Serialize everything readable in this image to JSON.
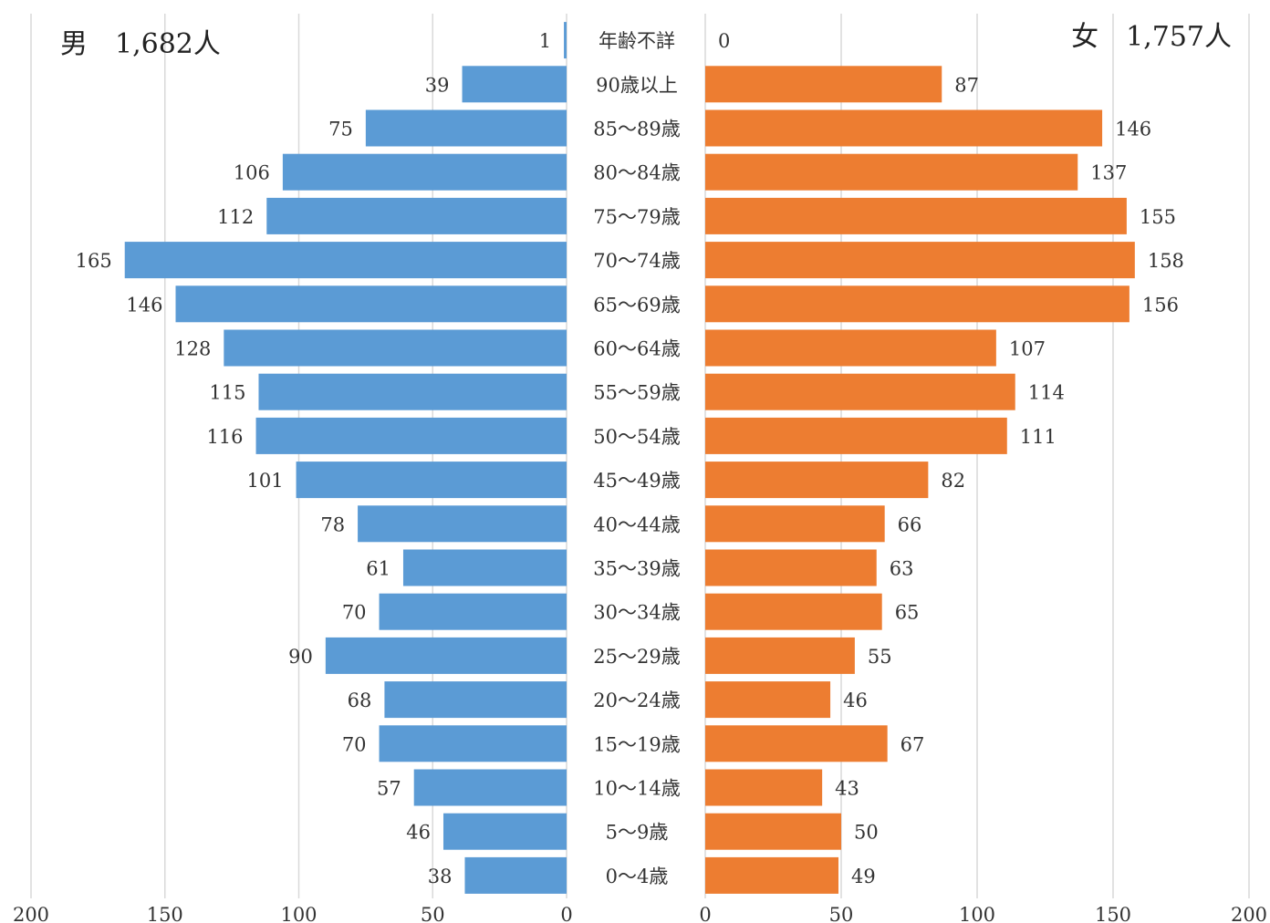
{
  "chart_data": {
    "type": "bar",
    "orientation": "horizontal-population-pyramid",
    "categories": [
      "年齢不詳",
      "90歳以上",
      "85〜89歳",
      "80〜84歳",
      "75〜79歳",
      "70〜74歳",
      "65〜69歳",
      "60〜64歳",
      "55〜59歳",
      "50〜54歳",
      "45〜49歳",
      "40〜44歳",
      "35〜39歳",
      "30〜34歳",
      "25〜29歳",
      "20〜24歳",
      "15〜19歳",
      "10〜14歳",
      "5〜9歳",
      "0〜4歳"
    ],
    "series": [
      {
        "name": "男",
        "total_label": "男　1,682人",
        "color": "#5B9BD5",
        "values": [
          1,
          39,
          75,
          106,
          112,
          165,
          146,
          128,
          115,
          116,
          101,
          78,
          61,
          70,
          90,
          68,
          70,
          57,
          46,
          38
        ]
      },
      {
        "name": "女",
        "total_label": "女　1,757人",
        "color": "#ED7D31",
        "values": [
          0,
          87,
          146,
          137,
          155,
          158,
          156,
          107,
          114,
          111,
          82,
          66,
          63,
          65,
          55,
          46,
          67,
          43,
          50,
          49
        ]
      }
    ],
    "left_axis_ticks": [
      "200",
      "150",
      "100",
      "50",
      "0"
    ],
    "right_axis_ticks": [
      "0",
      "50",
      "100",
      "150",
      "200"
    ],
    "xlim": [
      0,
      200
    ],
    "grid": true,
    "data_labels": true
  }
}
